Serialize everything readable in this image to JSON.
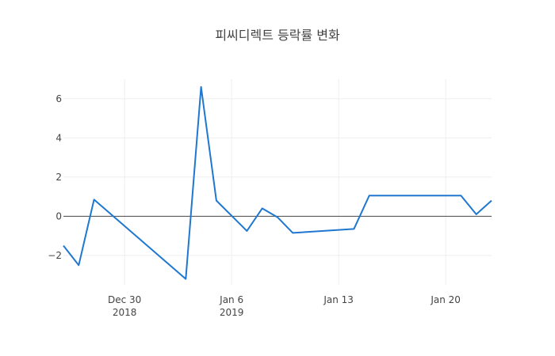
{
  "chart_data": {
    "type": "line",
    "title": "피씨디렉트 등락률 변화",
    "xlabel": "",
    "ylabel": "",
    "xlim": [
      "2018-12-26",
      "2019-01-23"
    ],
    "ylim": [
      -3.5,
      7.0
    ],
    "x_ticks": [
      {
        "date": "2018-12-30",
        "label": "Dec 30",
        "sublabel": "2018"
      },
      {
        "date": "2019-01-06",
        "label": "Jan 6",
        "sublabel": "2019"
      },
      {
        "date": "2019-01-13",
        "label": "Jan 13",
        "sublabel": ""
      },
      {
        "date": "2019-01-20",
        "label": "Jan 20",
        "sublabel": ""
      }
    ],
    "y_ticks": [
      {
        "value": -2,
        "label": "−2"
      },
      {
        "value": 0,
        "label": "0"
      },
      {
        "value": 2,
        "label": "2"
      },
      {
        "value": 4,
        "label": "4"
      },
      {
        "value": 6,
        "label": "6"
      }
    ],
    "grid": true,
    "zeroline": true,
    "series": [
      {
        "color": "#1f77d0",
        "x": [
          "2018-12-26",
          "2018-12-27",
          "2018-12-28",
          "2019-01-03",
          "2019-01-04",
          "2019-01-05",
          "2019-01-07",
          "2019-01-08",
          "2019-01-09",
          "2019-01-10",
          "2019-01-14",
          "2019-01-15",
          "2019-01-21",
          "2019-01-22",
          "2019-01-23"
        ],
        "y": [
          -1.5,
          -2.5,
          0.85,
          -3.2,
          6.6,
          0.8,
          -0.75,
          0.4,
          -0.05,
          -0.85,
          -0.65,
          1.05,
          1.05,
          0.1,
          0.8
        ]
      }
    ]
  }
}
